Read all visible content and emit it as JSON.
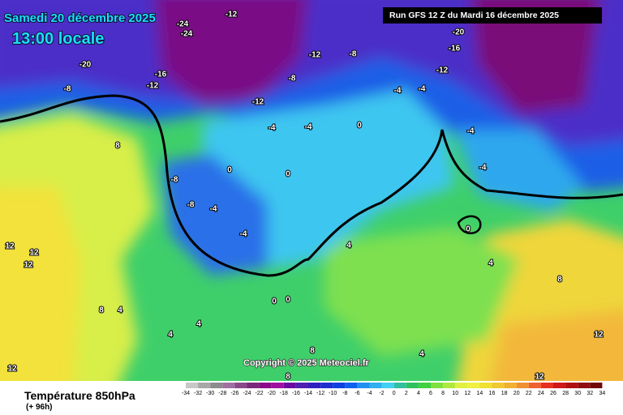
{
  "header": {
    "date": "Samedi 20 décembre 2025",
    "time": "13:00 locale"
  },
  "run": "Run GFS 12 Z du Mardi 16 décembre 2025",
  "copyright": "Copyright © 2025 Meteociel.fr",
  "footer": {
    "title": "Température 850hPa",
    "subtitle": "(+ 96h)"
  },
  "scale": [
    -34,
    -32,
    -30,
    -28,
    -26,
    -24,
    -22,
    -20,
    -18,
    -16,
    -14,
    -12,
    -10,
    -8,
    -6,
    -4,
    -2,
    0,
    2,
    4,
    6,
    8,
    10,
    12,
    14,
    16,
    18,
    20,
    22,
    24,
    26,
    28,
    30,
    32,
    34
  ],
  "map": {
    "labels": [
      -24,
      -24,
      -12,
      -20,
      -16,
      -12,
      -8,
      -8,
      -12,
      -12,
      -8,
      -20,
      -16,
      -12,
      -4,
      -4,
      -4,
      -4,
      0,
      -4,
      -4,
      0,
      -8,
      -8,
      -4,
      -4,
      0,
      0,
      4,
      4,
      8,
      8,
      4,
      4,
      12,
      12,
      12,
      12,
      12,
      12,
      8,
      4,
      0,
      0,
      4,
      8,
      8
    ]
  }
}
